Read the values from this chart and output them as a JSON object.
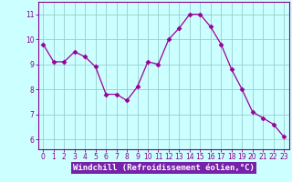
{
  "x": [
    0,
    1,
    2,
    3,
    4,
    5,
    6,
    7,
    8,
    9,
    10,
    11,
    12,
    13,
    14,
    15,
    16,
    17,
    18,
    19,
    20,
    21,
    22,
    23
  ],
  "y": [
    9.8,
    9.1,
    9.1,
    9.5,
    9.3,
    8.9,
    7.8,
    7.8,
    7.55,
    8.1,
    9.1,
    9.0,
    10.0,
    10.45,
    11.0,
    11.0,
    10.5,
    9.8,
    8.8,
    8.0,
    7.1,
    6.85,
    6.6,
    6.1
  ],
  "line_color": "#990099",
  "marker": "D",
  "marker_size": 2.5,
  "bg_color": "#ccffff",
  "grid_color": "#99cccc",
  "xlabel": "Windchill (Refroidissement éolien,°C)",
  "xlabel_bg": "#7722aa",
  "xlabel_color": "#ffffff",
  "yticks": [
    6,
    7,
    8,
    9,
    10,
    11
  ],
  "xticks": [
    0,
    1,
    2,
    3,
    4,
    5,
    6,
    7,
    8,
    9,
    10,
    11,
    12,
    13,
    14,
    15,
    16,
    17,
    18,
    19,
    20,
    21,
    22,
    23
  ],
  "ylim": [
    5.6,
    11.5
  ],
  "xlim": [
    -0.5,
    23.5
  ],
  "tick_color": "#880088",
  "spine_color": "#880088",
  "axis_bg": "#ccffff"
}
